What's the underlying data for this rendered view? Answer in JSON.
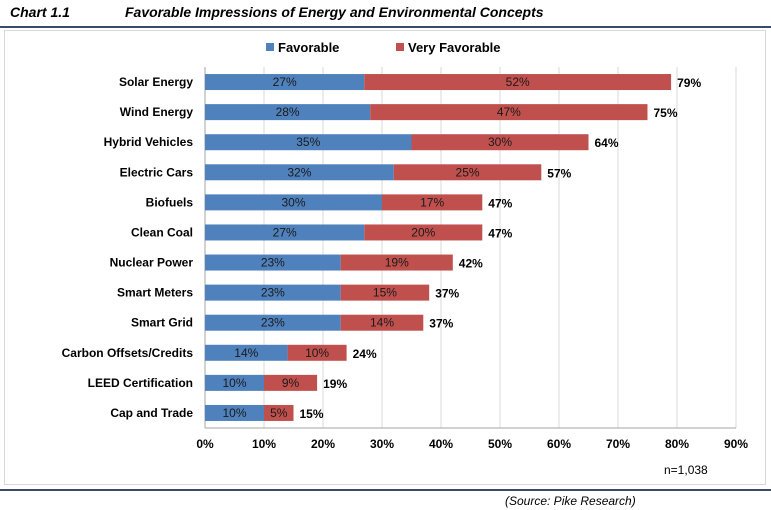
{
  "header": {
    "chart_number": "Chart 1.1",
    "title": "Favorable Impressions of Energy and Environmental Concepts"
  },
  "footer": {
    "sample_size": "n=1,038",
    "source": "(Source: Pike Research)"
  },
  "chart_data": {
    "type": "bar",
    "orientation": "horizontal",
    "stacked": true,
    "title": "Favorable Impressions of Energy and Environmental Concepts",
    "categories": [
      "Solar Energy",
      "Wind Energy",
      "Hybrid Vehicles",
      "Electric Cars",
      "Biofuels",
      "Clean Coal",
      "Nuclear Power",
      "Smart Meters",
      "Smart Grid",
      "Carbon Offsets/Credits",
      "LEED Certification",
      "Cap and Trade"
    ],
    "series": [
      {
        "name": "Favorable",
        "color": "#4f81bd",
        "values": [
          27,
          28,
          35,
          32,
          30,
          27,
          23,
          23,
          23,
          14,
          10,
          10
        ]
      },
      {
        "name": "Very Favorable",
        "color": "#c0504d",
        "values": [
          52,
          47,
          30,
          25,
          17,
          20,
          19,
          15,
          14,
          10,
          9,
          5
        ]
      }
    ],
    "totals": [
      79,
      75,
      64,
      57,
      47,
      47,
      42,
      37,
      37,
      24,
      19,
      15
    ],
    "xlim": [
      0,
      90
    ],
    "xticks": [
      0,
      10,
      20,
      30,
      40,
      50,
      60,
      70,
      80,
      90
    ],
    "value_suffix": "%",
    "grid": "vertical",
    "legend_position": "top"
  }
}
